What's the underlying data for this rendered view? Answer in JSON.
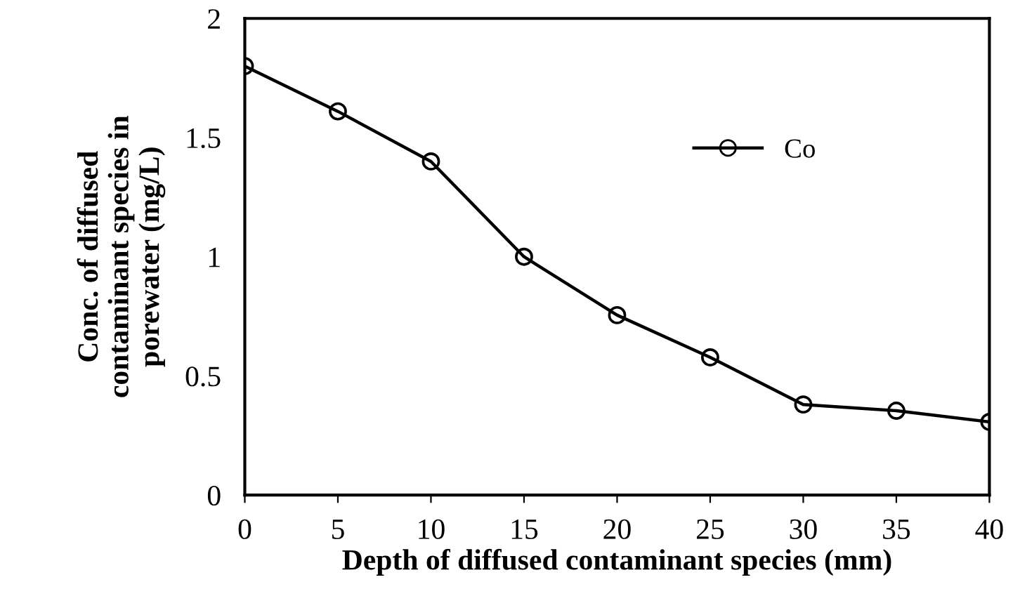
{
  "chart_data": {
    "type": "line",
    "xlabel": "Depth of diffused contaminant species (mm)",
    "ylabel": "Conc. of diffused\ncontaminant species in\nporewater (mg/L)",
    "x": [
      0,
      5,
      10,
      15,
      20,
      25,
      30,
      35,
      40
    ],
    "series": [
      {
        "name": "Co",
        "color": "#000000",
        "values": [
          1.8,
          1.61,
          1.4,
          1.0,
          0.755,
          0.578,
          0.38,
          0.354,
          0.307
        ]
      }
    ],
    "xlim": [
      0,
      40
    ],
    "xticks": [
      0,
      5,
      10,
      15,
      20,
      25,
      30,
      35,
      40
    ],
    "ylim": [
      0,
      2
    ],
    "yticks": [
      0,
      0.5,
      1,
      1.5,
      2
    ],
    "grid": false,
    "legend": "top right",
    "marker": "circle",
    "line_style": "solid"
  }
}
